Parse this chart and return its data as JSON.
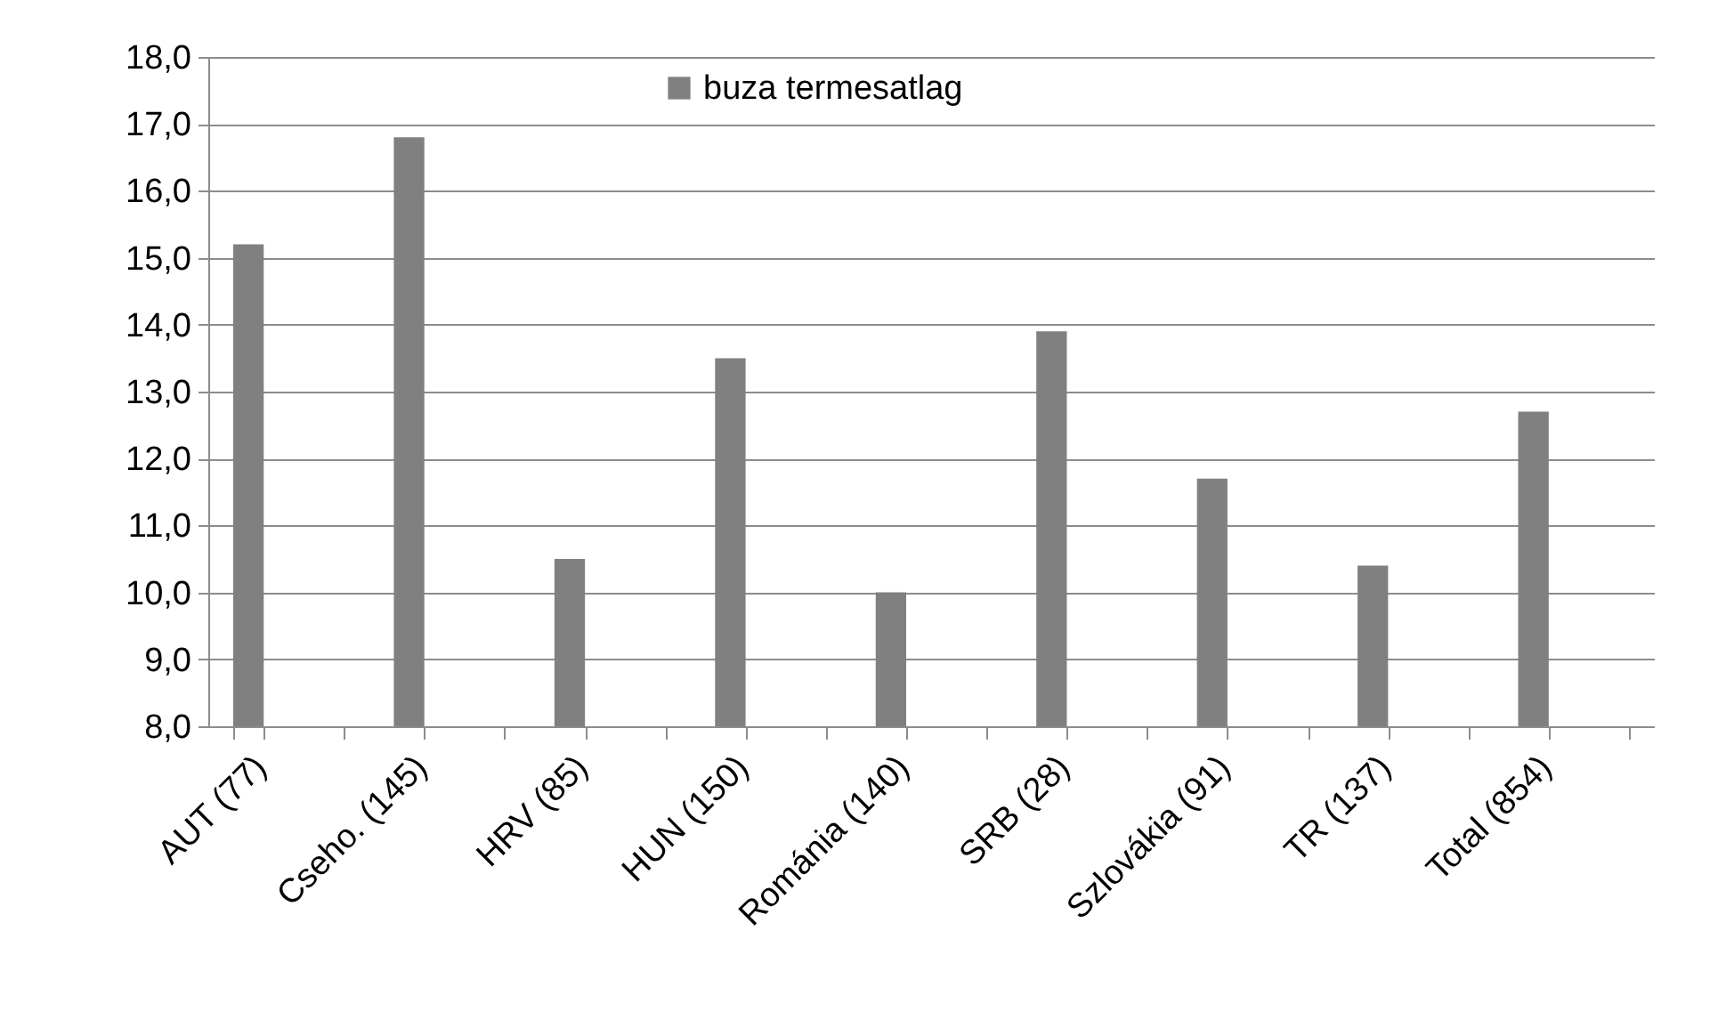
{
  "chart_data": {
    "type": "bar",
    "categories": [
      "AUT (77)",
      null,
      "Cseho. (145)",
      null,
      "HRV (85)",
      null,
      "HUN (150)",
      null,
      "Románia (140)",
      null,
      "SRB (28)",
      null,
      "Szlovákia (91)",
      null,
      "TR (137)",
      null,
      "Total (854)",
      null
    ],
    "series": [
      {
        "name": "buza termesatlag",
        "color": "#808080",
        "values": [
          15.2,
          null,
          16.8,
          null,
          10.5,
          null,
          13.5,
          null,
          10.0,
          null,
          13.9,
          null,
          11.7,
          null,
          10.4,
          null,
          12.7,
          null
        ]
      }
    ],
    "ylim": [
      8,
      18
    ],
    "yticks": [
      {
        "value": 8,
        "label": "8,0"
      },
      {
        "value": 9,
        "label": "9,0"
      },
      {
        "value": 10,
        "label": "10,0"
      },
      {
        "value": 11,
        "label": "11,0"
      },
      {
        "value": 12,
        "label": "12,0"
      },
      {
        "value": 13,
        "label": "13,0"
      },
      {
        "value": 14,
        "label": "14,0"
      },
      {
        "value": 15,
        "label": "15,0"
      },
      {
        "value": 16,
        "label": "16,0"
      },
      {
        "value": 17,
        "label": "17,0"
      },
      {
        "value": 18,
        "label": "18,0"
      }
    ],
    "grid": "y",
    "legend": "top"
  }
}
